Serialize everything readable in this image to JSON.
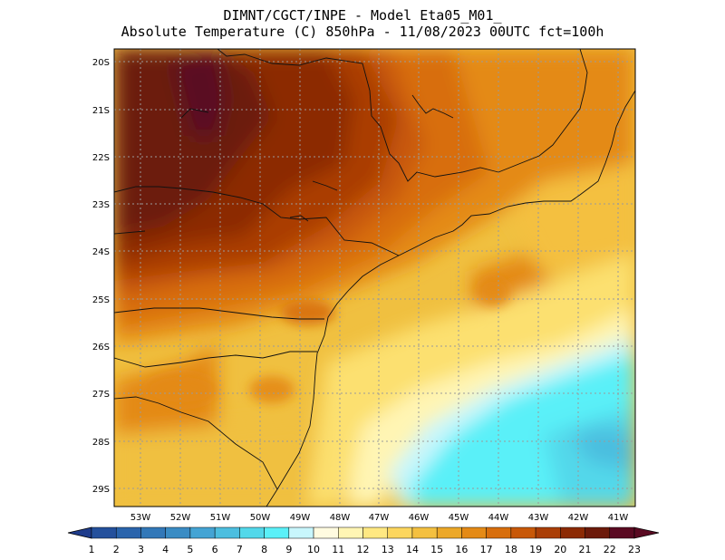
{
  "header": {
    "line1": "DIMNT/CGCT/INPE -  Model Eta05_M01_",
    "line2": "Absolute Temperature (C) 850hPa -  11/08/2023 00UTC fct=100h"
  },
  "map": {
    "region": "Southern and southeastern Brazil",
    "lat_labels": [
      "20S",
      "21S",
      "22S",
      "23S",
      "24S",
      "25S",
      "26S",
      "27S",
      "28S",
      "29S"
    ],
    "lon_labels": [
      "53W",
      "52W",
      "51W",
      "50W",
      "49W",
      "48W",
      "47W",
      "46W",
      "45W",
      "44W",
      "43W",
      "42W",
      "41W"
    ],
    "lat_range": [
      -29.4,
      -19.7
    ],
    "lon_range": [
      -53.8,
      -40.6
    ]
  },
  "colorbar": {
    "labels": [
      "1",
      "2",
      "3",
      "4",
      "5",
      "6",
      "7",
      "8",
      "9",
      "10",
      "11",
      "12",
      "13",
      "14",
      "15",
      "16",
      "17",
      "18",
      "19",
      "20",
      "21",
      "22",
      "23"
    ],
    "colors": [
      "#1e3c8c",
      "#24509c",
      "#2a64ac",
      "#3278b8",
      "#3a8cc4",
      "#44a4d4",
      "#4cbedf",
      "#52d8ea",
      "#5af0f8",
      "#c8f6fc",
      "#fffbe0",
      "#fff5b4",
      "#ffe882",
      "#fcd65e",
      "#f4c040",
      "#eca828",
      "#e48a16",
      "#d86e0c",
      "#c85808",
      "#aa3e06",
      "#8c2a04",
      "#6c1a0a",
      "#5a0a22"
    ]
  }
}
